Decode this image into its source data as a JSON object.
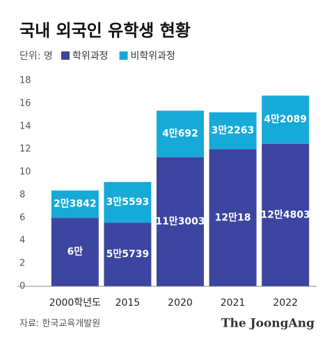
{
  "chart_data": {
    "type": "stacked_bar",
    "title": "국내 외국인 유학생 현황",
    "unit_label": "단위: 명",
    "categories": [
      "2000학년도",
      "2015",
      "2020",
      "2021",
      "2022"
    ],
    "series": [
      {
        "name": "학위과정",
        "color": "#3c45a0",
        "values": [
          6,
          5.5739,
          11.3003,
          12.0018,
          12.4803
        ],
        "value_labels": [
          "6만",
          "5만5739",
          "11만3003",
          "12만18",
          "12만4803"
        ]
      },
      {
        "name": "비학위과정",
        "color": "#17aad9",
        "values": [
          2.3842,
          3.5593,
          4.0692,
          3.2263,
          4.2089
        ],
        "value_labels": [
          "2만3842",
          "3만5593",
          "4만692",
          "3만2263",
          "4만2089"
        ]
      }
    ],
    "ylim": [
      0,
      18
    ],
    "yticks": [
      0,
      2,
      4,
      6,
      8,
      10,
      12,
      14,
      16,
      18
    ],
    "grid": false,
    "source": "자료: 한국교육개발원",
    "logo": "The JoongAng"
  }
}
